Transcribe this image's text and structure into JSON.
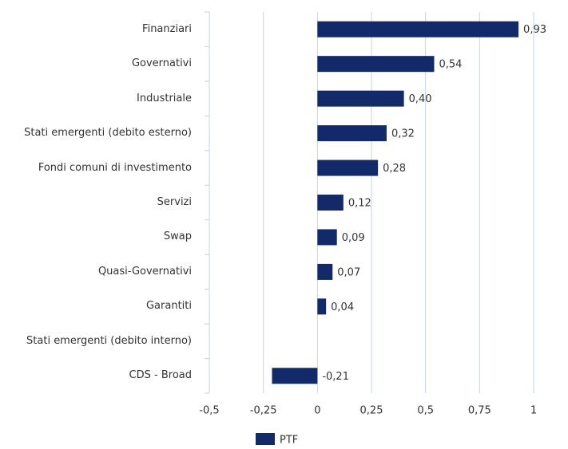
{
  "chart_data": {
    "type": "hbar",
    "categories": [
      "Finanziari",
      "Governativi",
      "Industriale",
      "Stati emergenti (debito esterno)",
      "Fondi comuni di investimento",
      "Servizi",
      "Swap",
      "Quasi-Governativi",
      "Garantiti",
      "Stati emergenti (debito interno)",
      "CDS - Broad"
    ],
    "series": [
      {
        "name": "PTF",
        "color": "#12296a",
        "values": [
          0.93,
          0.54,
          0.4,
          0.32,
          0.28,
          0.12,
          0.09,
          0.07,
          0.04,
          null,
          -0.21
        ],
        "value_labels": [
          "0,93",
          "0,54",
          "0,40",
          "0,32",
          "0,28",
          "0,12",
          "0,09",
          "0,07",
          "0,04",
          null,
          "-0,21"
        ]
      }
    ],
    "xlim": [
      -0.5,
      1
    ],
    "xticks": [
      {
        "value": -0.5,
        "label": "-0,5"
      },
      {
        "value": -0.25,
        "label": "-0,25"
      },
      0,
      {
        "value": 0.25,
        "label": "0,25"
      },
      {
        "value": 0.5,
        "label": "0,5"
      },
      {
        "value": 0.75,
        "label": "0,75"
      },
      1
    ],
    "grid": true
  }
}
